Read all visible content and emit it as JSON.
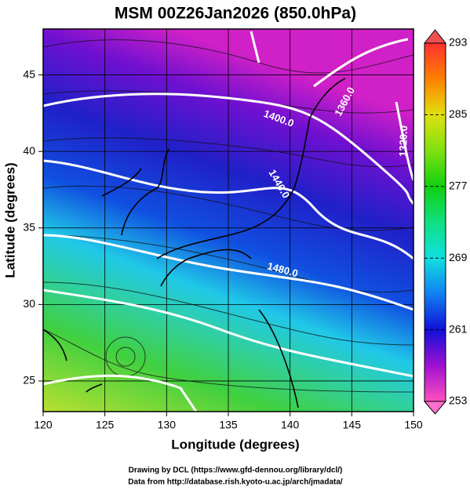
{
  "title": "MSM 00Z26Jan2026 (850.0hPa)",
  "x_axis": {
    "label": "Longitude (degrees)",
    "lim": [
      120,
      150
    ],
    "ticks": [
      120,
      125,
      130,
      135,
      140,
      145,
      150
    ]
  },
  "y_axis": {
    "label": "Latitude  (degrees)",
    "lim": [
      23,
      48
    ],
    "ticks": [
      25,
      30,
      35,
      40,
      45
    ]
  },
  "colorbar": {
    "lim": [
      253,
      293
    ],
    "ticks": [
      253,
      261,
      269,
      277,
      285,
      293
    ]
  },
  "contour_labels": [
    "1360.0",
    "1400.0",
    "1440.0",
    "1320.0",
    "1480.0"
  ],
  "credits": [
    "Drawing by DCL (https://www.gfd-dennou.org/library/dcl/)",
    "Data from http://database.rish.kyoto-u.ac.jp/arch/jmadata/"
  ]
}
